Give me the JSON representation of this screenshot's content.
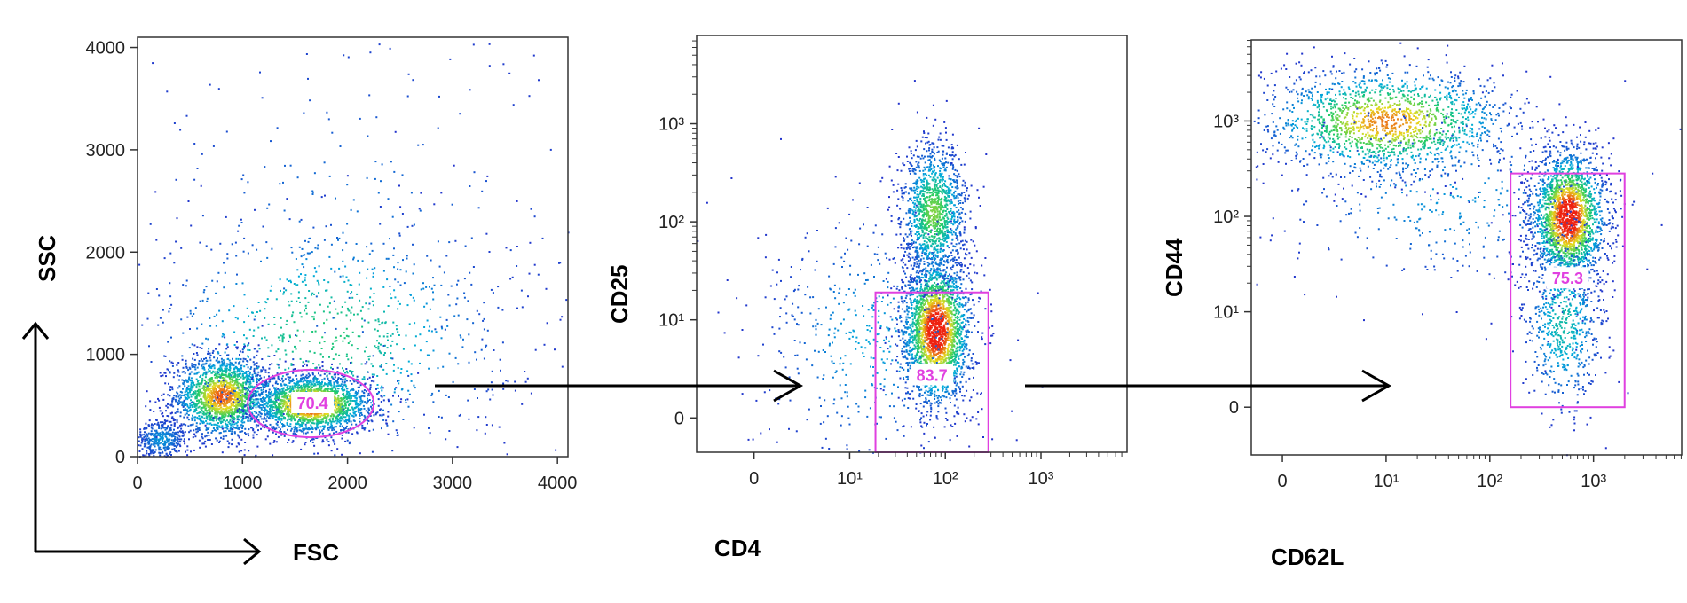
{
  "colors": {
    "gate": "#e040e0",
    "dot_low": "#2233cc",
    "dot_mid": "#22cc66",
    "dot_high": "#ee2211",
    "frame": "#333333",
    "arrow": "#000000"
  },
  "chart_data": [
    {
      "type": "scatter",
      "xlabel": "FSC",
      "ylabel": "SSC",
      "x_scale": "linear",
      "y_scale": "linear",
      "xlim": [
        0,
        4100
      ],
      "ylim": [
        0,
        4100
      ],
      "x_ticks": [
        "0",
        "1000",
        "2000",
        "3000",
        "4000"
      ],
      "x_tick_values": [
        0,
        1000,
        2000,
        3000,
        4000
      ],
      "y_ticks": [
        "0",
        "1000",
        "2000",
        "3000",
        "4000"
      ],
      "y_tick_values": [
        0,
        1000,
        2000,
        3000,
        4000
      ],
      "clusters": [
        {
          "x": 800,
          "y": 600,
          "sx": 230,
          "sy": 200,
          "n": 1800
        },
        {
          "x": 1650,
          "y": 520,
          "sx": 280,
          "sy": 140,
          "n": 2200
        },
        {
          "x": 220,
          "y": 180,
          "sx": 130,
          "sy": 100,
          "n": 400
        },
        {
          "x": 1800,
          "y": 1200,
          "sx": 900,
          "sy": 600,
          "n": 900
        },
        {
          "x": 2000,
          "y": 2200,
          "sx": 1300,
          "sy": 1200,
          "n": 260
        }
      ],
      "gate": {
        "shape": "ellipse",
        "center": [
          1650,
          520
        ],
        "radii": [
          600,
          330
        ],
        "label": "70.4"
      }
    },
    {
      "type": "scatter",
      "xlabel": "CD4",
      "ylabel": "CD25",
      "x_scale": "biexponential",
      "y_scale": "biexponential",
      "xlim": [
        -0.6,
        3.9
      ],
      "ylim": [
        -0.35,
        3.9
      ],
      "x_ticks": [
        "0",
        "10¹",
        "10²",
        "10³"
      ],
      "x_tick_values": [
        0,
        1,
        2,
        3
      ],
      "y_ticks": [
        "0",
        "10¹",
        "10²",
        "10³"
      ],
      "y_tick_values": [
        0,
        1,
        2,
        3
      ],
      "clusters": [
        {
          "x": 1.9,
          "y": 0.9,
          "sx": 0.18,
          "sy": 0.38,
          "n": 2400
        },
        {
          "x": 1.87,
          "y": 2.1,
          "sx": 0.17,
          "sy": 0.35,
          "n": 1300
        },
        {
          "x": 1.2,
          "y": 0.8,
          "sx": 0.6,
          "sy": 0.7,
          "n": 500
        }
      ],
      "gate": {
        "shape": "rect",
        "x": [
          1.27,
          2.45
        ],
        "y": [
          -0.35,
          1.28
        ],
        "label": "83.7"
      }
    },
    {
      "type": "scatter",
      "xlabel": "CD62L",
      "ylabel": "CD44",
      "x_scale": "biexponential",
      "y_scale": "biexponential",
      "xlim": [
        -0.3,
        3.85
      ],
      "ylim": [
        -0.5,
        3.85
      ],
      "x_ticks": [
        "0",
        "10¹",
        "10²",
        "10³"
      ],
      "x_tick_values": [
        0,
        1,
        2,
        3
      ],
      "y_ticks": [
        "0",
        "10¹",
        "10²",
        "10³"
      ],
      "y_tick_values": [
        0,
        1,
        2,
        3
      ],
      "clusters": [
        {
          "x": 2.75,
          "y": 2.0,
          "sx": 0.18,
          "sy": 0.35,
          "n": 2200
        },
        {
          "x": 2.7,
          "y": 0.9,
          "sx": 0.2,
          "sy": 0.5,
          "n": 700
        },
        {
          "x": 1.0,
          "y": 3.0,
          "sx": 0.6,
          "sy": 0.28,
          "n": 1700
        },
        {
          "x": 1.6,
          "y": 2.2,
          "sx": 0.9,
          "sy": 0.5,
          "n": 400
        }
      ],
      "gate": {
        "shape": "rect",
        "x": [
          2.2,
          3.3
        ],
        "y": [
          0,
          2.45
        ],
        "label": "75.3"
      }
    }
  ]
}
